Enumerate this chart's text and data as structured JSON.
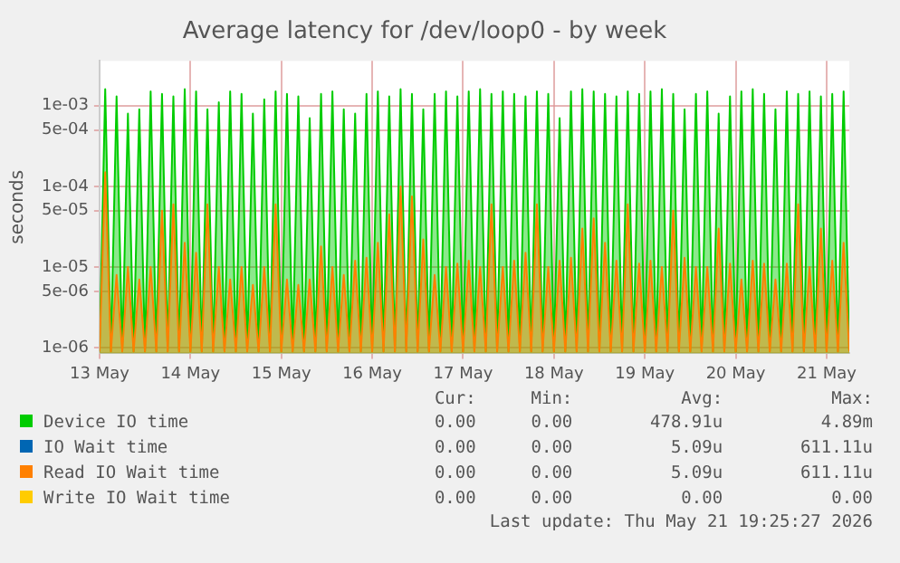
{
  "chart_data": {
    "type": "area",
    "title": "Average latency for /dev/loop0 - by week",
    "ylabel": "seconds",
    "log": "y",
    "grid": true,
    "legend": "bottom",
    "marker": "none",
    "xlim": [
      "2026-05-13T00:00",
      "2026-05-21T06:00"
    ],
    "xticks": [
      {
        "value": "2026-05-13",
        "label": "13 May"
      },
      {
        "value": "2026-05-14",
        "label": "14 May"
      },
      {
        "value": "2026-05-15",
        "label": "15 May"
      },
      {
        "value": "2026-05-16",
        "label": "16 May"
      },
      {
        "value": "2026-05-17",
        "label": "17 May"
      },
      {
        "value": "2026-05-18",
        "label": "18 May"
      },
      {
        "value": "2026-05-19",
        "label": "19 May"
      },
      {
        "value": "2026-05-20",
        "label": "20 May"
      },
      {
        "value": "2026-05-21",
        "label": "21 May"
      }
    ],
    "ylim": [
      8.5e-07,
      0.0036
    ],
    "yticks": [
      {
        "value": 1e-06,
        "label": "1e-06"
      },
      {
        "value": 5e-06,
        "label": "5e-06"
      },
      {
        "value": 1e-05,
        "label": "1e-05"
      },
      {
        "value": 5e-05,
        "label": "5e-05"
      },
      {
        "value": 0.0001,
        "label": "1e-04"
      },
      {
        "value": 0.0005,
        "label": "5e-04"
      },
      {
        "value": 0.001,
        "label": "1e-03"
      }
    ],
    "x": [
      "2026-05-13T00:00",
      "2026-05-13T01:30",
      "2026-05-13T03:00",
      "2026-05-13T04:30",
      "2026-05-13T06:00",
      "2026-05-13T07:30",
      "2026-05-13T09:00",
      "2026-05-13T10:30",
      "2026-05-13T12:00",
      "2026-05-13T13:30",
      "2026-05-13T15:00",
      "2026-05-13T16:30",
      "2026-05-13T18:00",
      "2026-05-13T19:30",
      "2026-05-13T21:00",
      "2026-05-13T22:30",
      "2026-05-14T00:00",
      "2026-05-14T01:30",
      "2026-05-14T03:00",
      "2026-05-14T04:30",
      "2026-05-14T06:00",
      "2026-05-14T07:30",
      "2026-05-14T09:00",
      "2026-05-14T10:30",
      "2026-05-14T12:00",
      "2026-05-14T13:30",
      "2026-05-14T15:00",
      "2026-05-14T16:30",
      "2026-05-14T18:00",
      "2026-05-14T19:30",
      "2026-05-14T21:00",
      "2026-05-14T22:30",
      "2026-05-15T00:00",
      "2026-05-15T01:30",
      "2026-05-15T03:00",
      "2026-05-15T04:30",
      "2026-05-15T06:00",
      "2026-05-15T07:30",
      "2026-05-15T09:00",
      "2026-05-15T10:30",
      "2026-05-15T12:00",
      "2026-05-15T13:30",
      "2026-05-15T15:00",
      "2026-05-15T16:30",
      "2026-05-15T18:00",
      "2026-05-15T19:30",
      "2026-05-15T21:00",
      "2026-05-15T22:30",
      "2026-05-16T00:00",
      "2026-05-16T01:30",
      "2026-05-16T03:00",
      "2026-05-16T04:30",
      "2026-05-16T06:00",
      "2026-05-16T07:30",
      "2026-05-16T09:00",
      "2026-05-16T10:30",
      "2026-05-16T12:00",
      "2026-05-16T13:30",
      "2026-05-16T15:00",
      "2026-05-16T16:30",
      "2026-05-16T18:00",
      "2026-05-16T19:30",
      "2026-05-16T21:00",
      "2026-05-16T22:30",
      "2026-05-17T00:00",
      "2026-05-17T01:30",
      "2026-05-17T03:00",
      "2026-05-17T04:30",
      "2026-05-17T06:00",
      "2026-05-17T07:30",
      "2026-05-17T09:00",
      "2026-05-17T10:30",
      "2026-05-17T12:00",
      "2026-05-17T13:30",
      "2026-05-17T15:00",
      "2026-05-17T16:30",
      "2026-05-17T18:00",
      "2026-05-17T19:30",
      "2026-05-17T21:00",
      "2026-05-17T22:30",
      "2026-05-18T00:00",
      "2026-05-18T01:30",
      "2026-05-18T03:00",
      "2026-05-18T04:30",
      "2026-05-18T06:00",
      "2026-05-18T07:30",
      "2026-05-18T09:00",
      "2026-05-18T10:30",
      "2026-05-18T12:00",
      "2026-05-18T13:30",
      "2026-05-18T15:00",
      "2026-05-18T16:30",
      "2026-05-18T18:00",
      "2026-05-18T19:30",
      "2026-05-18T21:00",
      "2026-05-18T22:30",
      "2026-05-19T00:00",
      "2026-05-19T01:30",
      "2026-05-19T03:00",
      "2026-05-19T04:30",
      "2026-05-19T06:00",
      "2026-05-19T07:30",
      "2026-05-19T09:00",
      "2026-05-19T10:30",
      "2026-05-19T12:00",
      "2026-05-19T13:30",
      "2026-05-19T15:00",
      "2026-05-19T16:30",
      "2026-05-19T18:00",
      "2026-05-19T19:30",
      "2026-05-19T21:00",
      "2026-05-19T22:30",
      "2026-05-20T00:00",
      "2026-05-20T01:30",
      "2026-05-20T03:00",
      "2026-05-20T04:30",
      "2026-05-20T06:00",
      "2026-05-20T07:30",
      "2026-05-20T09:00",
      "2026-05-20T10:30",
      "2026-05-20T12:00",
      "2026-05-20T13:30",
      "2026-05-20T15:00",
      "2026-05-20T16:30",
      "2026-05-20T18:00",
      "2026-05-20T19:30",
      "2026-05-20T21:00",
      "2026-05-20T22:30",
      "2026-05-21T00:00",
      "2026-05-21T01:30",
      "2026-05-21T03:00",
      "2026-05-21T04:30",
      "2026-05-21T06:00"
    ],
    "series": [
      {
        "name": "Device IO time",
        "color": "#00cc00",
        "values": [
          9e-07,
          0.0016,
          9e-07,
          0.0013,
          9e-07,
          0.0008,
          9e-07,
          0.0009,
          9e-07,
          0.0015,
          9e-07,
          0.0014,
          9e-07,
          0.0013,
          9e-07,
          0.0016,
          9e-07,
          0.0015,
          9e-07,
          0.0009,
          9e-07,
          0.0011,
          9e-07,
          0.0015,
          9e-07,
          0.0014,
          9e-07,
          0.0008,
          9e-07,
          0.0012,
          9e-07,
          0.0015,
          9e-07,
          0.0014,
          9e-07,
          0.0013,
          9e-07,
          0.0007,
          9e-07,
          0.0014,
          9e-07,
          0.0015,
          9e-07,
          0.0009,
          9e-07,
          0.0008,
          9e-07,
          0.0014,
          9e-07,
          0.0015,
          9e-07,
          0.0013,
          9e-07,
          0.0016,
          9e-07,
          0.0014,
          9e-07,
          0.0009,
          9e-07,
          0.0014,
          9e-07,
          0.0015,
          9e-07,
          0.0013,
          9e-07,
          0.0015,
          9e-07,
          0.0016,
          9e-07,
          0.0014,
          9e-07,
          0.0015,
          9e-07,
          0.0014,
          9e-07,
          0.0013,
          9e-07,
          0.0015,
          9e-07,
          0.0014,
          9e-07,
          0.0007,
          9e-07,
          0.0015,
          9e-07,
          0.0016,
          9e-07,
          0.0015,
          9e-07,
          0.0014,
          9e-07,
          0.0013,
          9e-07,
          0.0015,
          9e-07,
          0.0014,
          9e-07,
          0.0015,
          9e-07,
          0.0016,
          9e-07,
          0.0014,
          9e-07,
          0.0009,
          9e-07,
          0.0014,
          9e-07,
          0.0015,
          9e-07,
          0.0008,
          9e-07,
          0.0013,
          9e-07,
          0.0015,
          9e-07,
          0.0016,
          9e-07,
          0.0014,
          9e-07,
          0.0009,
          9e-07,
          0.0015,
          9e-07,
          0.0014,
          9e-07,
          0.0015,
          9e-07,
          0.0013,
          9e-07,
          0.0014,
          9e-07,
          0.0015,
          9e-07
        ]
      },
      {
        "name": "IO Wait time",
        "color": "#0066b3",
        "values": [
          null,
          null,
          null,
          null,
          null,
          null,
          null,
          null,
          null,
          null,
          null,
          null,
          null,
          null,
          null,
          null,
          null,
          null,
          null,
          null,
          null,
          null,
          null,
          null,
          null,
          null,
          null,
          null,
          null,
          null,
          null,
          null,
          null,
          null,
          null,
          null,
          null,
          null,
          null,
          null,
          null,
          null,
          null,
          null,
          null,
          null,
          null,
          null,
          null,
          null,
          null,
          null,
          null,
          null,
          null,
          null,
          null,
          null,
          null,
          null,
          null,
          null,
          null,
          null,
          null,
          null,
          null,
          null,
          null,
          null,
          null,
          null,
          null,
          null,
          null,
          null,
          null,
          null,
          null,
          null,
          null,
          null,
          null,
          null,
          null,
          null,
          null,
          null,
          null,
          null,
          null,
          null,
          null,
          null,
          null,
          null,
          null,
          null,
          null,
          null,
          null,
          null,
          null,
          null,
          null,
          null,
          null,
          null,
          null,
          null,
          null,
          null,
          null,
          null,
          null,
          null,
          null,
          null,
          null,
          null,
          null,
          null,
          null,
          null,
          null,
          null,
          null,
          null,
          null,
          null,
          null,
          null,
          null
        ]
      },
      {
        "name": "Read IO Wait time",
        "color": "#ff8000",
        "values": [
          9e-07,
          0.00015,
          9e-07,
          8e-06,
          9e-07,
          1e-05,
          9e-07,
          7e-06,
          9e-07,
          1e-05,
          9e-07,
          5e-05,
          9e-07,
          6e-05,
          9e-07,
          2e-05,
          9e-07,
          1.5e-05,
          9e-07,
          6e-05,
          9e-07,
          1e-05,
          9e-07,
          7e-06,
          9e-07,
          1e-05,
          9e-07,
          6e-06,
          9e-07,
          1e-05,
          9e-07,
          6e-05,
          9e-07,
          7e-06,
          9e-07,
          6e-06,
          9e-07,
          7e-06,
          9e-07,
          1.8e-05,
          9e-07,
          1e-05,
          9e-07,
          8e-06,
          9e-07,
          1.2e-05,
          9e-07,
          1.3e-05,
          9e-07,
          2e-05,
          9e-07,
          4.5e-05,
          9e-07,
          0.0001,
          9e-07,
          7.5e-05,
          9e-07,
          2.2e-05,
          9e-07,
          8e-06,
          9e-07,
          1e-05,
          9e-07,
          1.1e-05,
          9e-07,
          1.2e-05,
          9e-07,
          1e-05,
          9e-07,
          6e-05,
          9e-07,
          1e-05,
          9e-07,
          1.2e-05,
          9e-07,
          1.5e-05,
          9e-07,
          6e-05,
          9e-07,
          1e-05,
          9e-07,
          1.2e-05,
          9e-07,
          1.3e-05,
          9e-07,
          3e-05,
          9e-07,
          4e-05,
          9e-07,
          2e-05,
          9e-07,
          1.2e-05,
          9e-07,
          6e-05,
          9e-07,
          1.1e-05,
          9e-07,
          1.2e-05,
          9e-07,
          1e-05,
          9e-07,
          5e-05,
          9e-07,
          1.3e-05,
          9e-07,
          1e-05,
          9e-07,
          1e-05,
          9e-07,
          3e-05,
          9e-07,
          1.1e-05,
          9e-07,
          7e-06,
          9e-07,
          1.2e-05,
          9e-07,
          1.1e-05,
          9e-07,
          7e-06,
          9e-07,
          1.1e-05,
          9e-07,
          6e-05,
          9e-07,
          1e-05,
          9e-07,
          3e-05,
          9e-07,
          1.2e-05,
          9e-07,
          2e-05,
          9e-07
        ]
      },
      {
        "name": "Write IO Wait time",
        "color": "#ffcc00",
        "values": [
          null,
          null,
          null,
          null,
          null,
          null,
          null,
          null,
          null,
          null,
          null,
          null,
          null,
          null,
          null,
          null,
          null,
          null,
          null,
          null,
          null,
          null,
          null,
          null,
          null,
          null,
          null,
          null,
          null,
          null,
          null,
          null,
          null,
          null,
          null,
          null,
          null,
          null,
          null,
          null,
          null,
          null,
          null,
          null,
          null,
          null,
          null,
          null,
          null,
          null,
          null,
          null,
          null,
          null,
          null,
          null,
          null,
          null,
          null,
          null,
          null,
          null,
          null,
          null,
          null,
          null,
          null,
          null,
          null,
          null,
          null,
          null,
          null,
          null,
          null,
          null,
          null,
          null,
          null,
          null,
          null,
          null,
          null,
          null,
          null,
          null,
          null,
          null,
          null,
          null,
          null,
          null,
          null,
          null,
          null,
          null,
          null,
          null,
          null,
          null,
          null,
          null,
          null,
          null,
          null,
          null,
          null,
          null,
          null,
          null,
          null,
          null,
          null,
          null,
          null,
          null,
          null,
          null,
          null,
          null,
          null,
          null,
          null,
          null,
          null,
          null,
          null,
          null,
          null,
          null,
          null,
          null,
          null
        ]
      }
    ],
    "annotations": [
      "Cur:",
      "Min:",
      "Avg:",
      "Max:",
      "0.00",
      "0.00",
      "478.91u",
      "4.89m",
      "0.00",
      "0.00",
      "5.09u",
      "611.11u",
      "0.00",
      "0.00",
      "5.09u",
      "611.11u",
      "0.00",
      "0.00",
      "0.00",
      "0.00",
      "Last update: Thu May 21 19:25:27 2026"
    ]
  }
}
